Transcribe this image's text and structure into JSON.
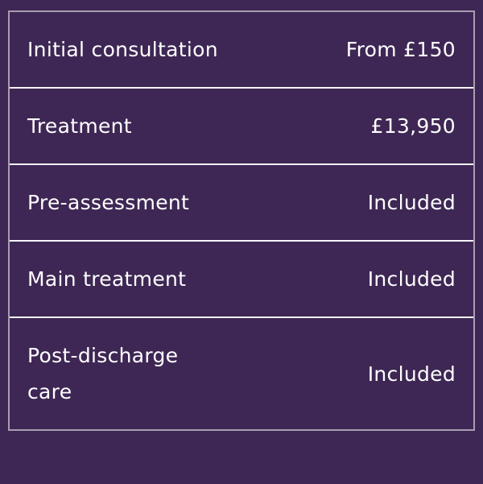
{
  "pricing_table": {
    "rows": [
      {
        "label": "Initial consultation",
        "value": "From £150"
      },
      {
        "label": "Treatment",
        "value": "£13,950"
      },
      {
        "label": "Pre-assessment",
        "value": "Included"
      },
      {
        "label": "Main treatment",
        "value": "Included"
      },
      {
        "label": "Post-discharge care",
        "value": "Included"
      }
    ]
  },
  "colors": {
    "background": "#3e2754",
    "outer_border": "rgba(255,255,255,0.55)",
    "row_separator": "#f7f5fa",
    "text": "#ffffff"
  }
}
